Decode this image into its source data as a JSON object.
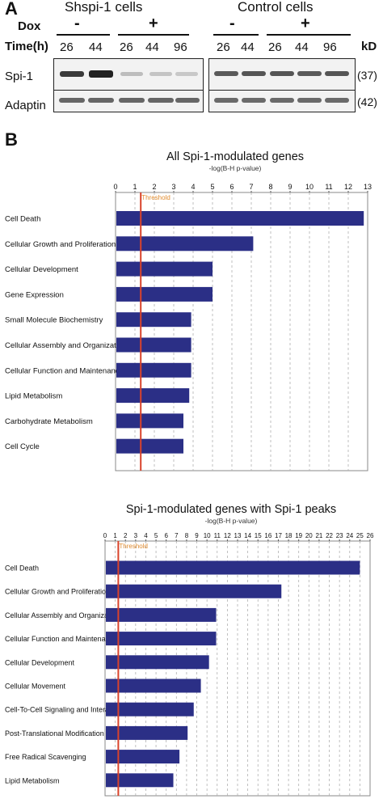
{
  "panel_a": {
    "label": "A",
    "group1_title": "Shspi-1 cells",
    "group2_title": "Control cells",
    "dox_label": "Dox",
    "time_label": "Time(h)",
    "kd_label": "kD",
    "g1_signs": [
      "-",
      "+"
    ],
    "g2_signs": [
      "-",
      "+"
    ],
    "g1_times": [
      "26",
      "44",
      "26",
      "44",
      "96"
    ],
    "g2_times": [
      "26",
      "44",
      "26",
      "44",
      "96"
    ],
    "rows": [
      {
        "name": "Spi-1",
        "kd": "(37)"
      },
      {
        "name": "Adaptin",
        "kd": "(42)"
      }
    ]
  },
  "panel_b": {
    "label": "B"
  },
  "chart_data": [
    {
      "type": "bar",
      "orientation": "horizontal",
      "title": "All Spi-1-modulated genes",
      "xlabel": "-log(B-H p-value)",
      "xlim": [
        0,
        13
      ],
      "xticks": [
        "0",
        "1",
        "2",
        "3",
        "4",
        "5",
        "6",
        "7",
        "8",
        "9",
        "10",
        "11",
        "12",
        "13"
      ],
      "threshold": 1.3,
      "threshold_label": "Threshold",
      "grid": true,
      "bar_color": "#2b2f86",
      "threshold_color": "#d9432b",
      "categories": [
        "Cell Death",
        "Cellular Growth and Proliferation",
        "Cellular Development",
        "Gene Expression",
        "Small Molecule Biochemistry",
        "Cellular Assembly and Organization",
        "Cellular Function and Maintenance",
        "Lipid Metabolism",
        "Carbohydrate Metabolism",
        "Cell Cycle"
      ],
      "values": [
        12.8,
        7.1,
        5.0,
        5.0,
        3.9,
        3.9,
        3.9,
        3.8,
        3.5,
        3.5
      ]
    },
    {
      "type": "bar",
      "orientation": "horizontal",
      "title": "Spi-1-modulated genes with Spi-1 peaks",
      "xlabel": "-log(B-H p-value)",
      "xlim": [
        0,
        26
      ],
      "xticks": [
        "0",
        "1",
        "2",
        "3",
        "4",
        "5",
        "6",
        "7",
        "8",
        "9",
        "10",
        "11",
        "12",
        "13",
        "14",
        "15",
        "16",
        "17",
        "18",
        "19",
        "20",
        "21",
        "22",
        "23",
        "24",
        "25",
        "26"
      ],
      "threshold": 1.3,
      "threshold_label": "Threshold",
      "grid": true,
      "bar_color": "#2b2f86",
      "threshold_color": "#d9432b",
      "categories": [
        "Cell Death",
        "Cellular Growth and Proliferation",
        "Cellular Assembly and Organization",
        "Cellular Function and Maintenance",
        "Cellular Development",
        "Cellular Movement",
        "Cell-To-Cell Signaling and Interaction",
        "Post-Translational Modification",
        "Free Radical Scavenging",
        "Lipid Metabolism"
      ],
      "values": [
        25.0,
        17.3,
        10.9,
        10.9,
        10.2,
        9.4,
        8.7,
        8.1,
        7.3,
        6.7
      ]
    }
  ]
}
